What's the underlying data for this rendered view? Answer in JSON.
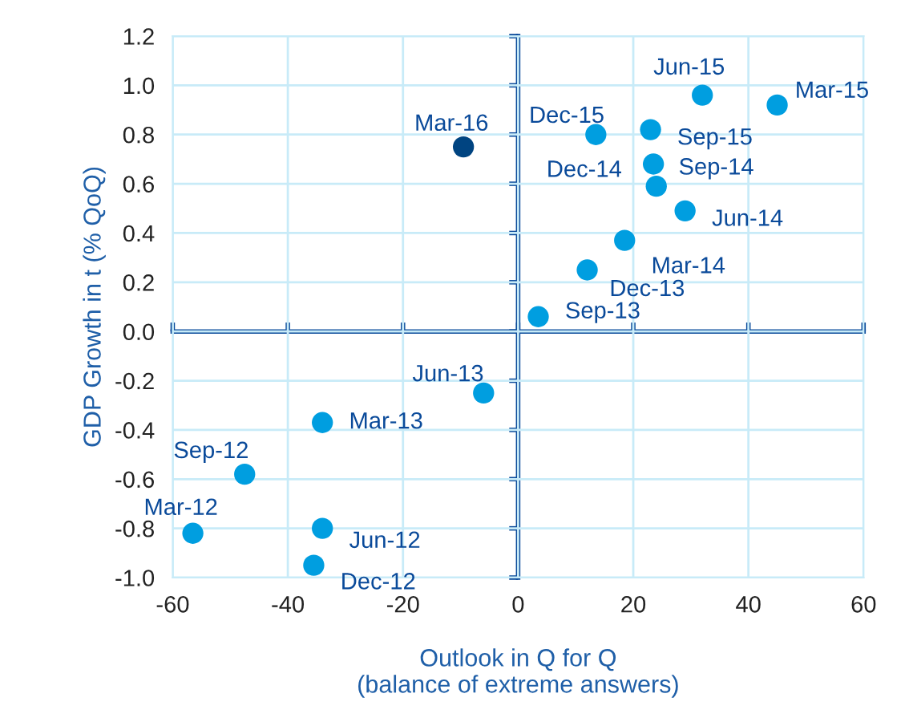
{
  "chart_data": {
    "type": "scatter",
    "ylabel": "GDP Growth in t (% QoQ)",
    "xlabel": "Outlook in Q for Q\n(balance of extreme answers)",
    "xlim": [
      -60,
      60
    ],
    "xticks": [
      -60,
      -40,
      -20,
      0,
      20,
      40,
      60
    ],
    "ylim": [
      -1.0,
      1.2
    ],
    "yticks": [
      {
        "value": -1.0,
        "label": "-1.0"
      },
      {
        "value": -0.8,
        "label": "-0.8"
      },
      {
        "value": -0.6,
        "label": "-0.6"
      },
      {
        "value": -0.4,
        "label": "-0.4"
      },
      {
        "value": -0.2,
        "label": "-0.2"
      },
      {
        "value": 0.0,
        "label": "0.0"
      },
      {
        "value": 0.2,
        "label": "0.2"
      },
      {
        "value": 0.4,
        "label": "0.4"
      },
      {
        "value": 0.6,
        "label": "0.6"
      },
      {
        "value": 0.8,
        "label": "0.8"
      },
      {
        "value": 1.0,
        "label": "1.0"
      },
      {
        "value": 1.2,
        "label": "1.2"
      }
    ],
    "grid": true,
    "marker": "circle",
    "series": [
      {
        "color": "#009ee0",
        "x": [
          -56.5,
          -34,
          -47.5,
          -35.5,
          -34,
          -6,
          3.5,
          12,
          18.5,
          29,
          24,
          23.5,
          23,
          13.5,
          32,
          45
        ],
        "values": [
          -0.82,
          -0.8,
          -0.58,
          -0.95,
          -0.37,
          -0.25,
          0.06,
          0.25,
          0.37,
          0.49,
          0.59,
          0.68,
          0.82,
          0.8,
          0.96,
          0.92
        ]
      },
      {
        "color": "#004481",
        "x": [
          -9.5
        ],
        "values": [
          0.75
        ]
      }
    ],
    "annotations": [
      {
        "text": "Mar-12",
        "x": -56.5,
        "y": -0.82
      },
      {
        "text": "Jun-12",
        "x": -34,
        "y": -0.8
      },
      {
        "text": "Sep-12",
        "x": -47.5,
        "y": -0.58
      },
      {
        "text": "Dec-12",
        "x": -35.5,
        "y": -0.95
      },
      {
        "text": "Mar-13",
        "x": -34,
        "y": -0.37
      },
      {
        "text": "Jun-13",
        "x": -6,
        "y": -0.25
      },
      {
        "text": "Sep-13",
        "x": 3.5,
        "y": 0.06
      },
      {
        "text": "Dec-13",
        "x": 12,
        "y": 0.25
      },
      {
        "text": "Mar-14",
        "x": 18.5,
        "y": 0.37
      },
      {
        "text": "Jun-14",
        "x": 29,
        "y": 0.49
      },
      {
        "text": "Sep-14",
        "x": 24,
        "y": 0.59
      },
      {
        "text": "Dec-14",
        "x": 23.5,
        "y": 0.68
      },
      {
        "text": "Sep-15",
        "x": 23,
        "y": 0.82
      },
      {
        "text": "Dec-15",
        "x": 13.5,
        "y": 0.8
      },
      {
        "text": "Jun-15",
        "x": 32,
        "y": 0.96
      },
      {
        "text": "Mar-15",
        "x": 45,
        "y": 0.92
      },
      {
        "text": "Mar-16",
        "x": -9.5,
        "y": 0.75
      }
    ]
  }
}
